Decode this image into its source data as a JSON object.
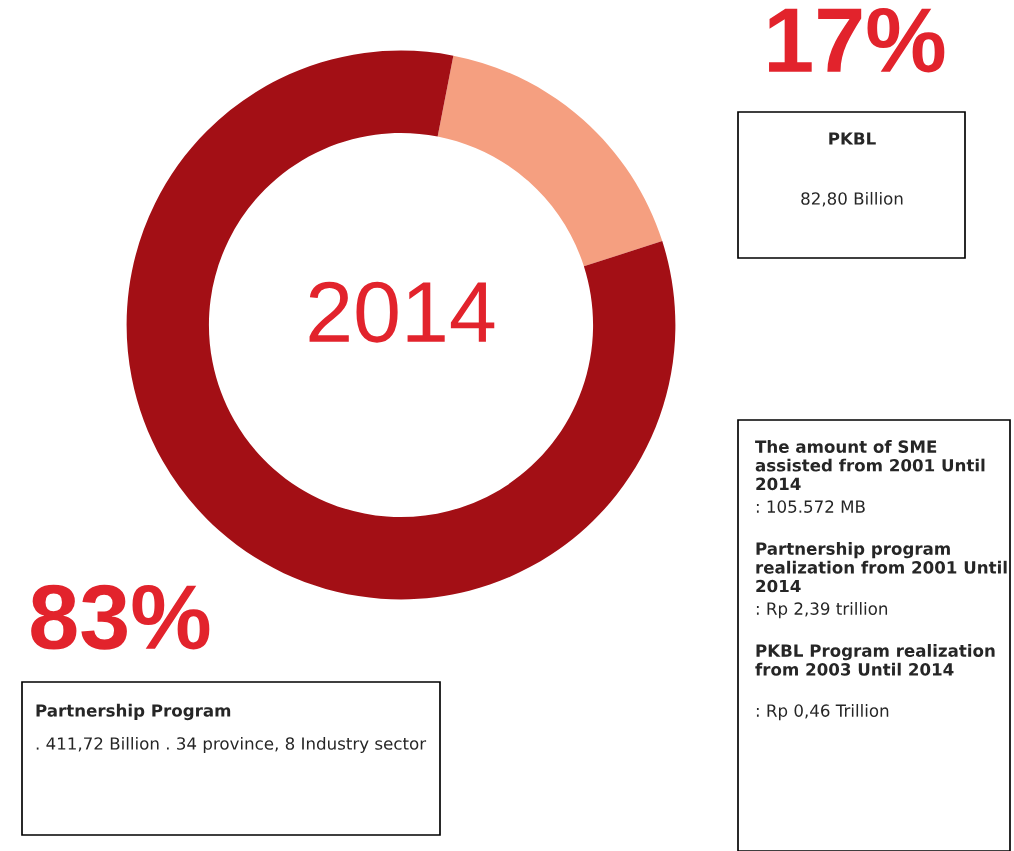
{
  "chart_data": {
    "type": "donut",
    "title": "2014",
    "categories": [
      "PKBL",
      "Partnership Program"
    ],
    "values": [
      17,
      83
    ],
    "colors": [
      "#f59f80",
      "#a30f15"
    ],
    "value_labels": [
      "17%",
      "83%"
    ],
    "legend": false,
    "annotations": [
      "82,80 Billion",
      ". 411,72 Billion . 34 province, 8 Industry sector",
      "The amount of SME assisted from 2001 Until 2014",
      ": 105.572 MB",
      "Partnership program realization from 2001 Until 2014",
      ": Rp 2,39 trillion",
      "PKBL Program realization from 2003 Until 2014",
      ": Rp 0,46 Trillion"
    ]
  }
}
